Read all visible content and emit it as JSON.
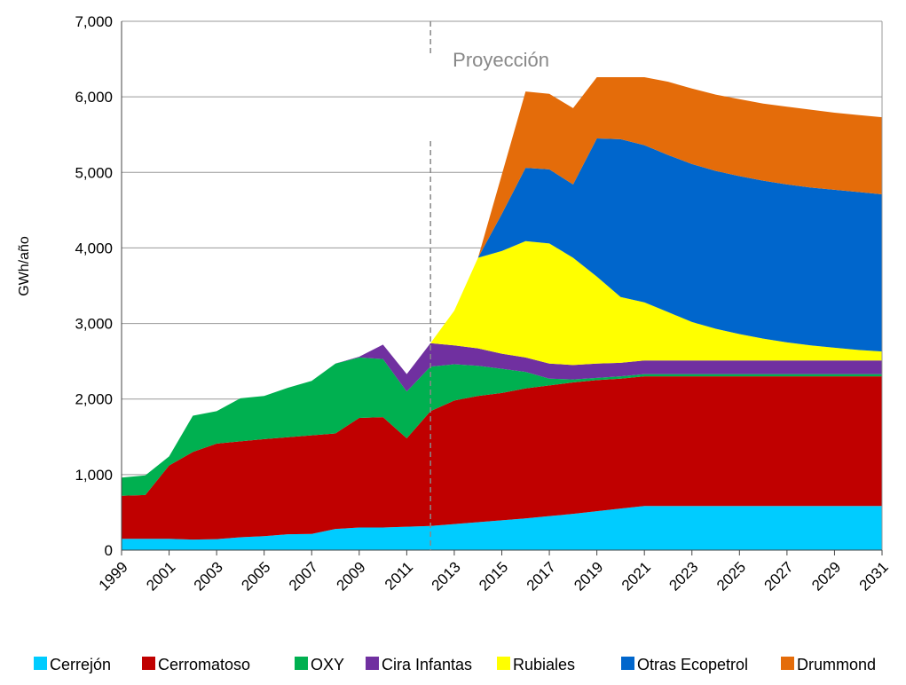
{
  "chart_data": {
    "type": "stacked_area",
    "y_label": "GWh/año",
    "annotation": {
      "text": "Proyección",
      "x": 2012
    },
    "x": [
      1999,
      2000,
      2001,
      2002,
      2003,
      2004,
      2005,
      2006,
      2007,
      2008,
      2009,
      2010,
      2011,
      2012,
      2013,
      2014,
      2015,
      2016,
      2017,
      2018,
      2019,
      2020,
      2021,
      2022,
      2023,
      2024,
      2025,
      2026,
      2027,
      2028,
      2029,
      2030,
      2031
    ],
    "xlim": [
      1999,
      2031
    ],
    "xticks": [
      1999,
      2001,
      2003,
      2005,
      2007,
      2009,
      2011,
      2013,
      2015,
      2017,
      2019,
      2021,
      2023,
      2025,
      2027,
      2029,
      2031
    ],
    "ylim": [
      0,
      7000
    ],
    "yticks": [
      0,
      {
        "value": 1000,
        "label": "1,000"
      },
      {
        "value": 2000,
        "label": "2,000"
      },
      {
        "value": 3000,
        "label": "3,000"
      },
      {
        "value": 4000,
        "label": "4,000"
      },
      {
        "value": 5000,
        "label": "5,000"
      },
      {
        "value": 6000,
        "label": "6,000"
      },
      {
        "value": 7000,
        "label": "7,000"
      }
    ],
    "grid": true,
    "legend": "bottom",
    "series": [
      {
        "name": "Cerrejón",
        "color": "#00ccff",
        "values": [
          150,
          150,
          150,
          140,
          145,
          170,
          185,
          210,
          215,
          280,
          300,
          300,
          310,
          320,
          345,
          370,
          395,
          420,
          450,
          480,
          515,
          550,
          585,
          585,
          585,
          585,
          585,
          585,
          585,
          585,
          585,
          585,
          585
        ]
      },
      {
        "name": "Cerromatoso",
        "color": "#c00000",
        "values": [
          570,
          580,
          970,
          1160,
          1265,
          1270,
          1285,
          1285,
          1305,
          1265,
          1450,
          1460,
          1170,
          1520,
          1635,
          1670,
          1685,
          1720,
          1730,
          1740,
          1735,
          1720,
          1715,
          1715,
          1715,
          1715,
          1715,
          1715,
          1715,
          1715,
          1715,
          1715,
          1715
        ]
      },
      {
        "name": "OXY",
        "color": "#00b050",
        "values": [
          240,
          260,
          120,
          480,
          430,
          570,
          570,
          655,
          720,
          925,
          800,
          770,
          620,
          590,
          480,
          400,
          320,
          220,
          90,
          40,
          30,
          30,
          30,
          30,
          30,
          30,
          30,
          30,
          30,
          30,
          30,
          30,
          30
        ]
      },
      {
        "name": "Cira Infantas",
        "color": "#7030a0",
        "values": [
          0,
          0,
          0,
          0,
          0,
          0,
          0,
          0,
          0,
          0,
          10,
          190,
          230,
          310,
          250,
          230,
          200,
          190,
          200,
          190,
          190,
          180,
          180,
          180,
          180,
          180,
          180,
          180,
          180,
          180,
          180,
          180,
          180
        ]
      },
      {
        "name": "Rubiales",
        "color": "#ffff00",
        "values": [
          0,
          0,
          0,
          0,
          0,
          0,
          0,
          0,
          0,
          0,
          0,
          0,
          0,
          0,
          460,
          1200,
          1360,
          1540,
          1590,
          1420,
          1150,
          870,
          770,
          640,
          510,
          420,
          350,
          290,
          240,
          200,
          170,
          140,
          120
        ]
      },
      {
        "name": "Otras Ecopetrol",
        "color": "#0066cc",
        "values": [
          0,
          0,
          0,
          0,
          0,
          0,
          0,
          0,
          0,
          0,
          0,
          0,
          0,
          0,
          0,
          0,
          490,
          970,
          980,
          970,
          1830,
          2090,
          2080,
          2080,
          2090,
          2090,
          2090,
          2090,
          2090,
          2090,
          2090,
          2090,
          2080
        ]
      },
      {
        "name": "Drummond",
        "color": "#e46c0a",
        "values": [
          0,
          0,
          0,
          0,
          0,
          0,
          0,
          0,
          0,
          0,
          0,
          0,
          0,
          0,
          0,
          0,
          520,
          1010,
          1000,
          1010,
          810,
          820,
          900,
          970,
          1000,
          1010,
          1020,
          1020,
          1030,
          1030,
          1020,
          1020,
          1020
        ]
      }
    ]
  }
}
